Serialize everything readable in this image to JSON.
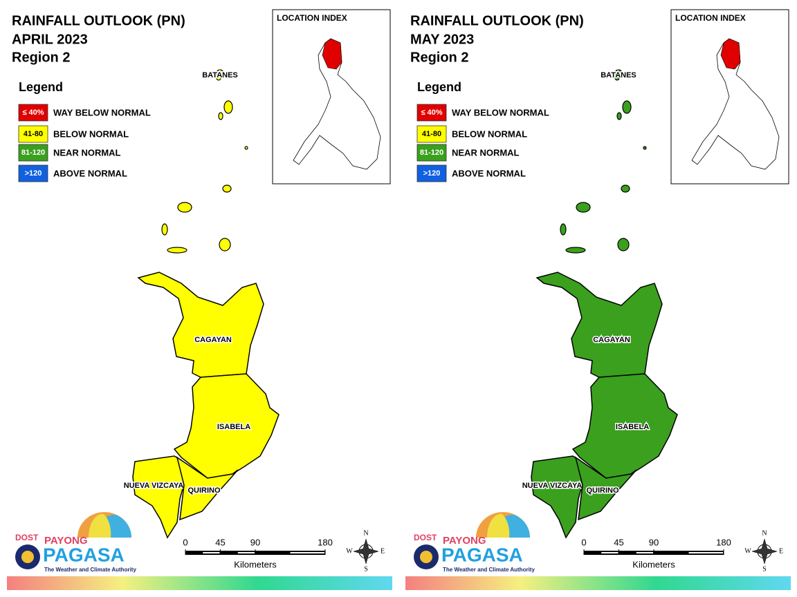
{
  "panels": [
    {
      "title": "RAINFALL OUTLOOK (PN)",
      "month": "APRIL 2023",
      "region": "Region 2",
      "legend": {
        "title": "Legend",
        "items": [
          {
            "code": "≤ 40%",
            "label": "WAY BELOW NORMAL",
            "color": "#e00000"
          },
          {
            "code": "41-80",
            "label": "BELOW NORMAL",
            "color": "#ffff00"
          },
          {
            "code": "81-120",
            "label": "NEAR NORMAL",
            "color": "#3aa01e"
          },
          {
            "code": ">120",
            "label": "ABOVE NORMAL",
            "color": "#1060e0"
          }
        ]
      },
      "location_index": "LOCATION INDEX",
      "provinces": [
        {
          "name": "BATANES",
          "color": "#ffff00"
        },
        {
          "name": "CAGAYAN",
          "color": "#ffff00"
        },
        {
          "name": "ISABELA",
          "color": "#ffff00"
        },
        {
          "name": "NUEVA VIZCAYA",
          "color": "#ffff00"
        },
        {
          "name": "QUIRINO",
          "color": "#ffff00"
        }
      ],
      "scale": {
        "ticks": [
          0,
          45,
          90,
          180
        ],
        "unit": "Kilometers"
      },
      "compass": {
        "n": "N",
        "e": "E",
        "s": "S",
        "w": "W"
      },
      "logo": {
        "dost": "DOST",
        "payong": "PAYONG",
        "pagasa": "PAGASA",
        "tagline": "The Weather and Climate Authority"
      }
    },
    {
      "title": "RAINFALL OUTLOOK (PN)",
      "month": "MAY 2023",
      "region": "Region 2",
      "legend": {
        "title": "Legend",
        "items": [
          {
            "code": "≤ 40%",
            "label": "WAY BELOW NORMAL",
            "color": "#e00000"
          },
          {
            "code": "41-80",
            "label": "BELOW NORMAL",
            "color": "#ffff00"
          },
          {
            "code": "81-120",
            "label": "NEAR NORMAL",
            "color": "#3aa01e"
          },
          {
            "code": ">120",
            "label": "ABOVE NORMAL",
            "color": "#1060e0"
          }
        ]
      },
      "location_index": "LOCATION INDEX",
      "provinces": [
        {
          "name": "BATANES",
          "color": "#3aa01e"
        },
        {
          "name": "CAGAYAN",
          "color": "#3aa01e"
        },
        {
          "name": "ISABELA",
          "color": "#3aa01e"
        },
        {
          "name": "NUEVA VIZCAYA",
          "color": "#3aa01e"
        },
        {
          "name": "QUIRINO",
          "color": "#3aa01e"
        }
      ],
      "scale": {
        "ticks": [
          0,
          45,
          90,
          180
        ],
        "unit": "Kilometers"
      },
      "compass": {
        "n": "N",
        "e": "E",
        "s": "S",
        "w": "W"
      },
      "logo": {
        "dost": "DOST",
        "payong": "PAYONG",
        "pagasa": "PAGASA",
        "tagline": "The Weather and Climate Authority"
      }
    }
  ]
}
